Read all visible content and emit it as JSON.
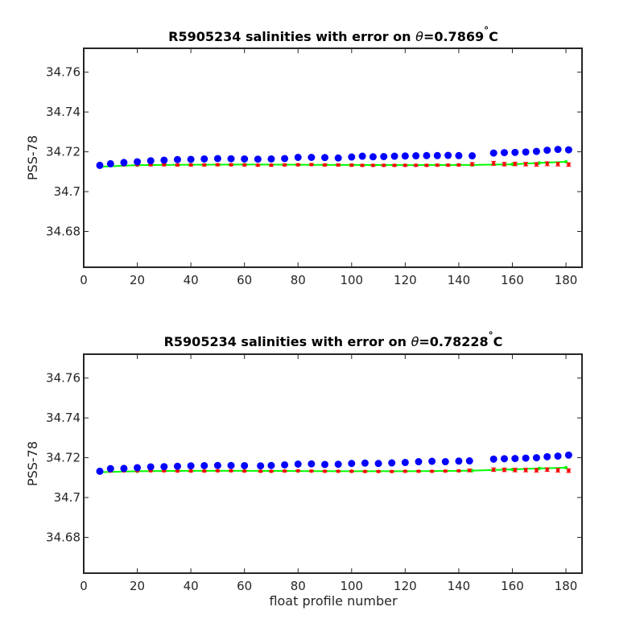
{
  "colors": {
    "observed": "#0000ff",
    "mapped": "#ff0000",
    "calibrated": "#00ff00",
    "axes": "#262626"
  },
  "chart_data": [
    {
      "type": "scatter",
      "title_main": "R5905234 salinities with error on ",
      "title_theta": "θ",
      "title_value": "=0.7869",
      "title_deg": "°",
      "title_unit": "C",
      "xlabel": "",
      "ylabel": "PSS-78",
      "xlim": [
        0,
        186
      ],
      "ylim": [
        34.662,
        34.772
      ],
      "xticks": [
        0,
        20,
        40,
        60,
        80,
        100,
        120,
        140,
        160,
        180
      ],
      "yticks": [
        34.68,
        34.7,
        34.72,
        34.74,
        34.76
      ],
      "ytick_labels": [
        "34.68",
        "34.7",
        "34.72",
        "34.74",
        "34.76"
      ],
      "series": [
        {
          "role": "observed",
          "style": "markers",
          "x": [
            6,
            10,
            15,
            20,
            25,
            30,
            35,
            40,
            45,
            50,
            55,
            60,
            65,
            70,
            75,
            80,
            85,
            90,
            95,
            100,
            104,
            108,
            112,
            116,
            120,
            124,
            128,
            132,
            136,
            140,
            145,
            153,
            157,
            161,
            165,
            169,
            173,
            177,
            181
          ],
          "y": [
            34.7132,
            34.714,
            34.7146,
            34.715,
            34.7155,
            34.7158,
            34.7161,
            34.7162,
            34.7164,
            34.7166,
            34.7165,
            34.7164,
            34.7163,
            34.7164,
            34.7166,
            34.7172,
            34.7172,
            34.7171,
            34.7169,
            34.7174,
            34.7178,
            34.7175,
            34.7176,
            34.7178,
            34.7179,
            34.718,
            34.7181,
            34.7181,
            34.7182,
            34.7181,
            34.718,
            34.7194,
            34.7196,
            34.7197,
            34.7199,
            34.7202,
            34.7208,
            34.7212,
            34.721
          ]
        },
        {
          "role": "mapped",
          "style": "markers-errorbars",
          "x": [
            6,
            10,
            15,
            20,
            25,
            30,
            35,
            40,
            45,
            50,
            55,
            60,
            65,
            70,
            75,
            80,
            85,
            90,
            95,
            100,
            104,
            108,
            112,
            116,
            120,
            124,
            128,
            132,
            136,
            140,
            145,
            153,
            157,
            161,
            165,
            169,
            173,
            177,
            181
          ],
          "y": [
            34.7131,
            34.7133,
            34.7135,
            34.7135,
            34.7135,
            34.7135,
            34.7134,
            34.7134,
            34.7134,
            34.7135,
            34.7135,
            34.7134,
            34.7133,
            34.7133,
            34.7134,
            34.7135,
            34.7136,
            34.7134,
            34.7134,
            34.7133,
            34.7132,
            34.7132,
            34.7132,
            34.7132,
            34.7132,
            34.7132,
            34.7132,
            34.7133,
            34.7133,
            34.7134,
            34.7138,
            34.7142,
            34.7138,
            34.7139,
            34.7138,
            34.7137,
            34.714,
            34.7138,
            34.7136
          ],
          "err": [
            0.0005,
            0.0005,
            0.0005,
            0.0005,
            0.0005,
            0.0005,
            0.0005,
            0.0005,
            0.0005,
            0.0005,
            0.0005,
            0.0005,
            0.0005,
            0.0005,
            0.0005,
            0.0005,
            0.0005,
            0.0005,
            0.0005,
            0.0005,
            0.0005,
            0.0005,
            0.0005,
            0.0005,
            0.0005,
            0.0005,
            0.0005,
            0.0005,
            0.0005,
            0.0005,
            0.0008,
            0.001,
            0.0009,
            0.0009,
            0.0009,
            0.0009,
            0.001,
            0.0009,
            0.0009
          ]
        },
        {
          "role": "calibrated",
          "style": "line",
          "x": [
            6,
            20,
            40,
            60,
            80,
            100,
            120,
            140,
            145,
            160,
            170,
            180
          ],
          "y": [
            34.7125,
            34.7133,
            34.7135,
            34.7136,
            34.7135,
            34.7134,
            34.7133,
            34.7134,
            34.7134,
            34.7137,
            34.7144,
            34.715
          ]
        }
      ]
    },
    {
      "type": "scatter",
      "title_main": "R5905234 salinities with error on ",
      "title_theta": "θ",
      "title_value": "=0.78228",
      "title_deg": "°",
      "title_unit": "C",
      "xlabel": "float profile number",
      "ylabel": "PSS-78",
      "xlim": [
        0,
        186
      ],
      "ylim": [
        34.662,
        34.772
      ],
      "xticks": [
        0,
        20,
        40,
        60,
        80,
        100,
        120,
        140,
        160,
        180
      ],
      "yticks": [
        34.68,
        34.7,
        34.72,
        34.74,
        34.76
      ],
      "ytick_labels": [
        "34.68",
        "34.7",
        "34.72",
        "34.74",
        "34.76"
      ],
      "series": [
        {
          "role": "observed",
          "style": "markers",
          "x": [
            6,
            10,
            15,
            20,
            25,
            30,
            35,
            40,
            45,
            50,
            55,
            60,
            66,
            70,
            75,
            80,
            85,
            90,
            95,
            100,
            105,
            110,
            115,
            120,
            125,
            130,
            135,
            140,
            144,
            153,
            157,
            161,
            165,
            169,
            173,
            177,
            181
          ],
          "y": [
            34.7132,
            34.7145,
            34.7146,
            34.715,
            34.7154,
            34.7155,
            34.7157,
            34.7159,
            34.716,
            34.7161,
            34.7161,
            34.716,
            34.7159,
            34.7161,
            34.7164,
            34.7168,
            34.7169,
            34.7166,
            34.7167,
            34.7171,
            34.7173,
            34.7171,
            34.7174,
            34.7176,
            34.718,
            34.7182,
            34.718,
            34.7183,
            34.7184,
            34.7193,
            34.7195,
            34.7196,
            34.7198,
            34.72,
            34.7205,
            34.7208,
            34.7213
          ]
        },
        {
          "role": "mapped",
          "style": "markers-errorbars",
          "x": [
            6,
            10,
            15,
            20,
            25,
            30,
            35,
            40,
            45,
            50,
            55,
            60,
            66,
            70,
            75,
            80,
            85,
            90,
            95,
            100,
            105,
            110,
            115,
            120,
            125,
            130,
            135,
            140,
            144,
            153,
            157,
            161,
            165,
            169,
            173,
            177,
            181
          ],
          "y": [
            34.713,
            34.7133,
            34.7134,
            34.7134,
            34.7134,
            34.7134,
            34.7133,
            34.7133,
            34.7133,
            34.7134,
            34.7134,
            34.7133,
            34.7132,
            34.7132,
            34.7133,
            34.7134,
            34.7133,
            34.7132,
            34.7132,
            34.7132,
            34.7131,
            34.7131,
            34.7131,
            34.7132,
            34.7132,
            34.7132,
            34.7133,
            34.7134,
            34.7136,
            34.714,
            34.7139,
            34.7138,
            34.7138,
            34.7137,
            34.714,
            34.7137,
            34.7135
          ],
          "err": [
            0.0004,
            0.0004,
            0.0004,
            0.0004,
            0.0004,
            0.0004,
            0.0004,
            0.0004,
            0.0004,
            0.0004,
            0.0004,
            0.0004,
            0.0004,
            0.0004,
            0.0004,
            0.0004,
            0.0004,
            0.0004,
            0.0004,
            0.0004,
            0.0004,
            0.0004,
            0.0004,
            0.0004,
            0.0004,
            0.0004,
            0.0004,
            0.0004,
            0.0007,
            0.0009,
            0.0009,
            0.0009,
            0.0009,
            0.0009,
            0.0009,
            0.0009,
            0.0009
          ]
        },
        {
          "role": "calibrated",
          "style": "line",
          "x": [
            6,
            20,
            40,
            60,
            80,
            100,
            120,
            140,
            145,
            160,
            170,
            180
          ],
          "y": [
            34.7127,
            34.7132,
            34.7134,
            34.7134,
            34.7133,
            34.7132,
            34.7132,
            34.7134,
            34.7135,
            34.7141,
            34.7146,
            34.715
          ]
        }
      ]
    }
  ]
}
